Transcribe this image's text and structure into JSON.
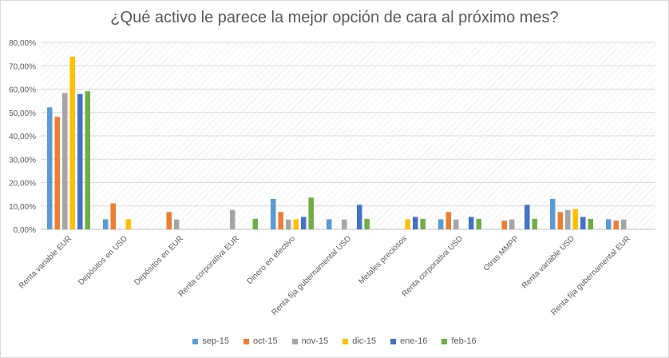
{
  "chart_data": {
    "type": "bar",
    "title": "¿Qué activo le parece la mejor opción de cara al próximo mes?",
    "xlabel": "",
    "ylabel": "",
    "ylim": [
      0,
      80
    ],
    "y_ticks": [
      "0,00%",
      "10,00%",
      "20,00%",
      "30,00%",
      "40,00%",
      "50,00%",
      "60,00%",
      "70,00%",
      "80,00%"
    ],
    "legend_position": "bottom",
    "categories": [
      "Renta variable EUR",
      "Depósitos en USD",
      "Depósitos en EUR",
      "Renta corporativa EUR",
      "Dinero en efectivo",
      "Renta fija gubernamental USD",
      "Metales preciosos",
      "Renta corporativa USD",
      "Otras MMPP",
      "Renta variable USD",
      "Renta fija gubernamental EUR"
    ],
    "series": [
      {
        "name": "sep-15",
        "color": "#5b9bd5",
        "values": [
          52.2,
          4.3,
          0,
          0,
          13.0,
          4.3,
          0,
          4.3,
          0,
          13.0,
          4.3
        ]
      },
      {
        "name": "oct-15",
        "color": "#ed7d31",
        "values": [
          48.1,
          11.1,
          7.4,
          0,
          7.4,
          0,
          0,
          7.4,
          3.7,
          7.4,
          3.7
        ]
      },
      {
        "name": "nov-15",
        "color": "#a5a5a5",
        "values": [
          58.3,
          0,
          4.2,
          8.3,
          4.2,
          4.2,
          0,
          4.2,
          4.2,
          8.3,
          4.2
        ]
      },
      {
        "name": "dic-15",
        "color": "#ffc000",
        "values": [
          73.9,
          4.3,
          0,
          0,
          4.3,
          0,
          4.3,
          0,
          0,
          8.7,
          0
        ]
      },
      {
        "name": "ene-16",
        "color": "#4472c4",
        "values": [
          57.9,
          0,
          0,
          0,
          5.3,
          10.5,
          5.3,
          5.3,
          10.5,
          5.3,
          0
        ]
      },
      {
        "name": "feb-16",
        "color": "#70ad47",
        "values": [
          59.1,
          0,
          0,
          4.5,
          13.6,
          4.5,
          4.5,
          4.5,
          4.5,
          4.5,
          0
        ]
      }
    ]
  }
}
